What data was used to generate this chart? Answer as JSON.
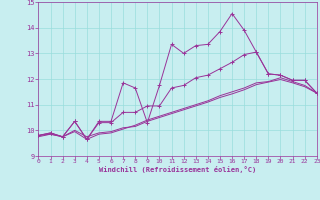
{
  "xlabel": "Windchill (Refroidissement éolien,°C)",
  "background_color": "#c8eef0",
  "grid_color": "#99dddd",
  "line_color": "#993399",
  "spine_color": "#993399",
  "ylim": [
    9,
    15
  ],
  "xlim": [
    0,
    23
  ],
  "yticks": [
    9,
    10,
    11,
    12,
    13,
    14,
    15
  ],
  "xticks": [
    0,
    1,
    2,
    3,
    4,
    5,
    6,
    7,
    8,
    9,
    10,
    11,
    12,
    13,
    14,
    15,
    16,
    17,
    18,
    19,
    20,
    21,
    22,
    23
  ],
  "series1_x": [
    0,
    1,
    2,
    3,
    4,
    5,
    6,
    7,
    8,
    9,
    10,
    11,
    12,
    13,
    14,
    15,
    16,
    17,
    18,
    19,
    20,
    21,
    22,
    23
  ],
  "series1_y": [
    9.8,
    9.9,
    9.75,
    10.35,
    9.65,
    10.35,
    10.35,
    11.85,
    11.65,
    10.3,
    11.75,
    13.35,
    13.0,
    13.3,
    13.35,
    13.85,
    14.55,
    13.9,
    13.05,
    12.2,
    12.15,
    11.95,
    11.95,
    11.45
  ],
  "series2_x": [
    0,
    1,
    2,
    3,
    4,
    5,
    6,
    7,
    8,
    9,
    10,
    11,
    12,
    13,
    14,
    15,
    16,
    17,
    18,
    19,
    20,
    21,
    22,
    23
  ],
  "series2_y": [
    9.8,
    9.9,
    9.75,
    10.35,
    9.65,
    10.3,
    10.3,
    10.7,
    10.7,
    10.95,
    10.95,
    11.65,
    11.75,
    12.05,
    12.15,
    12.4,
    12.65,
    12.95,
    13.05,
    12.2,
    12.15,
    11.95,
    11.95,
    11.45
  ],
  "series3_x": [
    0,
    1,
    2,
    3,
    4,
    5,
    6,
    7,
    8,
    9,
    10,
    11,
    12,
    13,
    14,
    15,
    16,
    17,
    18,
    19,
    20,
    21,
    22,
    23
  ],
  "series3_y": [
    9.75,
    9.85,
    9.75,
    9.95,
    9.65,
    9.85,
    9.9,
    10.05,
    10.2,
    10.4,
    10.55,
    10.7,
    10.85,
    11.0,
    11.15,
    11.35,
    11.5,
    11.65,
    11.85,
    11.9,
    12.05,
    11.9,
    11.75,
    11.45
  ],
  "series4_x": [
    0,
    1,
    2,
    3,
    4,
    5,
    6,
    7,
    8,
    9,
    10,
    11,
    12,
    13,
    14,
    15,
    16,
    17,
    18,
    19,
    20,
    21,
    22,
    23
  ],
  "series4_y": [
    9.8,
    9.85,
    9.75,
    10.0,
    9.75,
    9.9,
    9.95,
    10.1,
    10.15,
    10.35,
    10.5,
    10.65,
    10.8,
    10.95,
    11.1,
    11.28,
    11.42,
    11.58,
    11.78,
    11.88,
    11.98,
    11.85,
    11.7,
    11.45
  ]
}
